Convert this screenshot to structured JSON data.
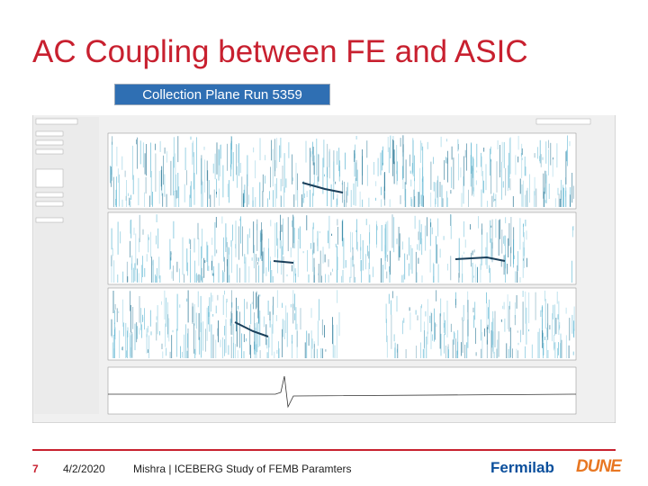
{
  "header": {
    "title": "AC Coupling between FE and ASIC"
  },
  "figure": {
    "caption": "Collection Plane Run 5359"
  },
  "footer": {
    "page": "7",
    "date": "4/2/2020",
    "text": "Mishra | ICEBERG Study of FEMB Paramters",
    "logos": [
      "Fermilab",
      "DUNE"
    ]
  }
}
